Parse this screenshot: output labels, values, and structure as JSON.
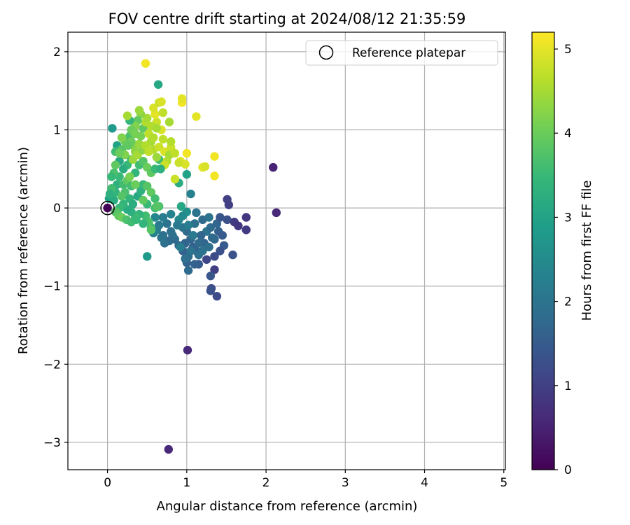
{
  "chart_data": {
    "type": "scatter",
    "title": "FOV centre drift starting at 2024/08/12 21:35:59",
    "xlabel": "Angular distance from reference (arcmin)",
    "ylabel": "Rotation from reference (arcmin)",
    "xlim": [
      -0.5,
      5.02
    ],
    "ylim": [
      -3.35,
      2.25
    ],
    "xticks": [
      0,
      1,
      2,
      3,
      4,
      5
    ],
    "yticks": [
      -3,
      -2,
      -1,
      0,
      1,
      2
    ],
    "xtick_labels": [
      "0",
      "1",
      "2",
      "3",
      "4",
      "5"
    ],
    "ytick_labels": [
      "−3",
      "−2",
      "−1",
      "0",
      "1",
      "2"
    ],
    "grid": true,
    "legend": {
      "position": "top-right",
      "entries": [
        "Reference platepar"
      ]
    },
    "reference_point": {
      "x": 0,
      "y": 0,
      "label": "Reference platepar"
    },
    "colorbar": {
      "label": "Hours from first FF file",
      "range": [
        0,
        5.2
      ],
      "ticks": [
        0,
        1,
        2,
        3,
        4,
        5
      ],
      "tick_labels": [
        "0",
        "1",
        "2",
        "3",
        "4",
        "5"
      ],
      "colormap": "viridis",
      "colors": [
        "#440154",
        "#482878",
        "#3e4989",
        "#31688e",
        "#26828e",
        "#1f9e89",
        "#35b779",
        "#6ece58",
        "#b5de2b",
        "#fde725"
      ]
    },
    "points": [
      [
        0.0,
        0.0,
        0.05
      ],
      [
        0.02,
        0.12,
        3.0
      ],
      [
        2.09,
        0.52,
        0.5
      ],
      [
        2.13,
        -0.06,
        0.6
      ],
      [
        1.01,
        -1.82,
        0.6
      ],
      [
        0.77,
        -3.09,
        0.6
      ],
      [
        1.51,
        0.11,
        1.0
      ],
      [
        1.53,
        0.04,
        1.0
      ],
      [
        1.51,
        -0.15,
        1.3
      ],
      [
        1.6,
        -0.18,
        0.9
      ],
      [
        1.65,
        -0.23,
        0.8
      ],
      [
        1.75,
        -0.12,
        0.8
      ],
      [
        1.75,
        -0.28,
        0.9
      ],
      [
        1.58,
        -0.6,
        1.3
      ],
      [
        1.47,
        -0.48,
        1.5
      ],
      [
        1.42,
        -0.55,
        1.3
      ],
      [
        1.35,
        -0.62,
        1.2
      ],
      [
        1.35,
        -0.79,
        1.0
      ],
      [
        1.31,
        -1.03,
        1.2
      ],
      [
        1.3,
        -1.06,
        1.3
      ],
      [
        1.38,
        -1.13,
        1.2
      ],
      [
        1.3,
        -0.87,
        1.4
      ],
      [
        1.25,
        -0.66,
        1.1
      ],
      [
        1.15,
        -0.72,
        1.5
      ],
      [
        1.1,
        -0.72,
        1.6
      ],
      [
        1.02,
        -0.8,
        1.8
      ],
      [
        1.0,
        -0.7,
        1.6
      ],
      [
        1.02,
        -0.62,
        1.8
      ],
      [
        1.12,
        -0.55,
        1.6
      ],
      [
        1.22,
        -0.45,
        1.7
      ],
      [
        1.25,
        -0.3,
        2.0
      ],
      [
        1.3,
        -0.25,
        1.8
      ],
      [
        1.35,
        -0.4,
        1.7
      ],
      [
        1.4,
        -0.3,
        1.6
      ],
      [
        1.45,
        -0.35,
        1.5
      ],
      [
        1.2,
        -0.15,
        1.8
      ],
      [
        1.18,
        -0.35,
        1.7
      ],
      [
        1.08,
        -0.5,
        1.6
      ],
      [
        1.05,
        -0.4,
        1.7
      ],
      [
        1.0,
        -0.3,
        1.8
      ],
      [
        0.98,
        -0.45,
        1.7
      ],
      [
        0.95,
        -0.55,
        1.6
      ],
      [
        0.9,
        -0.48,
        1.7
      ],
      [
        0.85,
        -0.4,
        1.8
      ],
      [
        0.8,
        -0.3,
        1.9
      ],
      [
        0.75,
        -0.2,
        2.0
      ],
      [
        0.7,
        -0.35,
        1.9
      ],
      [
        0.65,
        -0.22,
        2.1
      ],
      [
        0.7,
        -0.12,
        2.2
      ],
      [
        0.8,
        -0.08,
        2.3
      ],
      [
        0.9,
        -0.15,
        2.4
      ],
      [
        1.0,
        -0.05,
        2.6
      ],
      [
        1.05,
        0.18,
        2.3
      ],
      [
        1.12,
        -0.06,
        2.0
      ],
      [
        1.0,
        0.43,
        3.0
      ],
      [
        0.9,
        0.32,
        3.2
      ],
      [
        0.93,
        0.02,
        3.1
      ],
      [
        1.1,
        -0.2,
        1.9
      ],
      [
        1.15,
        -0.45,
        1.8
      ],
      [
        0.95,
        -0.25,
        2.0
      ],
      [
        0.88,
        -0.22,
        2.1
      ],
      [
        0.82,
        -0.35,
        1.9
      ],
      [
        0.78,
        -0.42,
        1.8
      ],
      [
        0.72,
        -0.45,
        1.9
      ],
      [
        0.68,
        -0.38,
        2.0
      ],
      [
        0.62,
        -0.28,
        2.2
      ],
      [
        0.6,
        -0.12,
        2.4
      ],
      [
        0.58,
        -0.32,
        2.3
      ],
      [
        0.5,
        -0.62,
        2.8
      ],
      [
        0.55,
        -0.25,
        3.5
      ],
      [
        0.52,
        -0.18,
        3.7
      ],
      [
        0.48,
        -0.1,
        3.6
      ],
      [
        0.4,
        -0.08,
        3.4
      ],
      [
        0.35,
        -0.12,
        3.6
      ],
      [
        0.3,
        -0.05,
        3.3
      ],
      [
        0.25,
        -0.02,
        3.2
      ],
      [
        0.2,
        0.05,
        3.4
      ],
      [
        0.15,
        0.0,
        3.5
      ],
      [
        0.12,
        -0.05,
        3.6
      ],
      [
        0.08,
        0.1,
        3.2
      ],
      [
        0.1,
        0.2,
        3.4
      ],
      [
        0.12,
        0.3,
        3.3
      ],
      [
        0.15,
        0.4,
        3.5
      ],
      [
        0.2,
        0.3,
        3.6
      ],
      [
        0.22,
        0.2,
        3.7
      ],
      [
        0.18,
        0.15,
        3.8
      ],
      [
        0.25,
        0.35,
        3.9
      ],
      [
        0.3,
        0.28,
        3.6
      ],
      [
        0.28,
        0.12,
        3.4
      ],
      [
        0.32,
        0.05,
        3.2
      ],
      [
        0.38,
        0.15,
        3.1
      ],
      [
        0.42,
        0.22,
        3.3
      ],
      [
        0.45,
        0.3,
        3.5
      ],
      [
        0.5,
        0.28,
        3.8
      ],
      [
        0.55,
        0.2,
        3.9
      ],
      [
        0.6,
        0.12,
        3.6
      ],
      [
        0.65,
        0.02,
        3.7
      ],
      [
        0.35,
        0.45,
        3.4
      ],
      [
        0.4,
        0.55,
        3.6
      ],
      [
        0.45,
        0.6,
        3.8
      ],
      [
        0.5,
        0.52,
        4.0
      ],
      [
        0.55,
        0.45,
        3.9
      ],
      [
        0.6,
        0.5,
        3.5
      ],
      [
        0.65,
        0.62,
        3.6
      ],
      [
        0.3,
        0.62,
        3.3
      ],
      [
        0.25,
        0.55,
        3.5
      ],
      [
        0.2,
        0.5,
        3.2
      ],
      [
        0.15,
        0.6,
        3.1
      ],
      [
        0.1,
        0.55,
        3.9
      ],
      [
        0.08,
        0.45,
        3.7
      ],
      [
        0.05,
        0.4,
        3.5
      ],
      [
        0.12,
        0.8,
        3.0
      ],
      [
        0.1,
        0.72,
        3.6
      ],
      [
        0.18,
        0.75,
        3.8
      ],
      [
        0.22,
        0.85,
        4.0
      ],
      [
        0.28,
        0.92,
        3.7
      ],
      [
        0.32,
        0.8,
        4.2
      ],
      [
        0.35,
        0.72,
        4.3
      ],
      [
        0.4,
        0.82,
        4.4
      ],
      [
        0.42,
        0.92,
        4.1
      ],
      [
        0.45,
        1.02,
        3.9
      ],
      [
        0.48,
        1.1,
        4.6
      ],
      [
        0.52,
        0.95,
        4.7
      ],
      [
        0.55,
        0.85,
        4.5
      ],
      [
        0.58,
        0.75,
        4.6
      ],
      [
        0.62,
        0.65,
        4.4
      ],
      [
        0.65,
        0.78,
        4.8
      ],
      [
        0.7,
        0.88,
        4.7
      ],
      [
        0.72,
        0.72,
        4.9
      ],
      [
        0.75,
        0.6,
        4.6
      ],
      [
        0.78,
        0.68,
        4.5
      ],
      [
        0.8,
        0.78,
        4.8
      ],
      [
        0.68,
        1.0,
        4.9
      ],
      [
        0.62,
        1.1,
        4.8
      ],
      [
        0.6,
        1.2,
        5.0
      ],
      [
        0.58,
        1.28,
        4.9
      ],
      [
        0.65,
        1.35,
        4.8
      ],
      [
        0.7,
        1.22,
        4.7
      ],
      [
        0.55,
        1.05,
        4.6
      ],
      [
        0.5,
        1.15,
        4.5
      ],
      [
        0.42,
        1.2,
        4.3
      ],
      [
        0.38,
        1.12,
        3.9
      ],
      [
        0.35,
        1.05,
        4.2
      ],
      [
        0.3,
        1.0,
        4.0
      ],
      [
        0.28,
        1.12,
        3.4
      ],
      [
        0.25,
        1.18,
        4.5
      ],
      [
        0.4,
        1.25,
        4.4
      ],
      [
        0.48,
        1.85,
        5.1
      ],
      [
        0.64,
        1.58,
        3.1
      ],
      [
        0.06,
        1.02,
        2.8
      ],
      [
        0.68,
        1.36,
        4.9
      ],
      [
        0.94,
        1.35,
        5.1
      ],
      [
        0.94,
        1.4,
        5.0
      ],
      [
        1.12,
        1.17,
        5.0
      ],
      [
        1.35,
        0.66,
        5.1
      ],
      [
        1.2,
        0.52,
        5.0
      ],
      [
        1.23,
        0.53,
        4.9
      ],
      [
        1.35,
        0.41,
        5.1
      ],
      [
        0.85,
        0.37,
        4.8
      ],
      [
        0.92,
        0.6,
        5.0
      ],
      [
        1.0,
        0.7,
        5.1
      ],
      [
        0.98,
        0.56,
        4.9
      ],
      [
        0.9,
        0.58,
        4.8
      ],
      [
        0.85,
        0.7,
        4.7
      ],
      [
        0.8,
        0.85,
        4.6
      ],
      [
        0.78,
        1.1,
        4.5
      ],
      [
        0.72,
        0.55,
        4.8
      ],
      [
        0.67,
        0.5,
        3.3
      ],
      [
        0.05,
        0.25,
        3.6
      ],
      [
        0.03,
        0.18,
        3.3
      ],
      [
        0.1,
        -0.05,
        3.8
      ],
      [
        0.14,
        -0.1,
        3.9
      ],
      [
        0.18,
        -0.12,
        4.0
      ],
      [
        0.24,
        -0.15,
        3.7
      ],
      [
        0.3,
        -0.18,
        3.6
      ],
      [
        0.36,
        -0.15,
        3.5
      ],
      [
        0.45,
        -0.2,
        3.4
      ],
      [
        0.55,
        -0.28,
        3.8
      ],
      [
        0.6,
        0.0,
        3.6
      ],
      [
        0.62,
        0.02,
        3.8
      ],
      [
        0.5,
        0.05,
        3.5
      ],
      [
        0.45,
        0.1,
        3.9
      ],
      [
        0.35,
        0.3,
        4.0
      ],
      [
        0.28,
        0.4,
        4.1
      ],
      [
        0.22,
        0.68,
        4.2
      ],
      [
        0.32,
        0.62,
        4.4
      ],
      [
        0.38,
        0.68,
        4.5
      ],
      [
        0.44,
        0.74,
        4.3
      ],
      [
        0.48,
        0.8,
        4.6
      ],
      [
        0.52,
        0.72,
        4.7
      ],
      [
        0.58,
        0.9,
        4.6
      ],
      [
        0.62,
        1.02,
        4.5
      ],
      [
        0.35,
        0.95,
        4.1
      ],
      [
        0.3,
        0.85,
        4.0
      ],
      [
        0.26,
        0.8,
        3.9
      ],
      [
        0.18,
        0.9,
        4.2
      ],
      [
        0.15,
        0.7,
        4.0
      ],
      [
        0.95,
        -0.1,
        2.5
      ],
      [
        1.02,
        -0.22,
        2.2
      ],
      [
        1.08,
        -0.35,
        2.1
      ],
      [
        1.15,
        -0.6,
        1.9
      ],
      [
        1.2,
        -0.55,
        2.0
      ],
      [
        1.28,
        -0.5,
        1.9
      ],
      [
        1.32,
        -0.38,
        1.8
      ],
      [
        1.38,
        -0.2,
        1.7
      ],
      [
        1.42,
        -0.12,
        1.4
      ],
      [
        1.28,
        -0.12,
        2.0
      ],
      [
        0.98,
        -0.65,
        1.9
      ],
      [
        1.05,
        -0.55,
        2.0
      ],
      [
        0.92,
        -0.5,
        2.2
      ]
    ]
  }
}
